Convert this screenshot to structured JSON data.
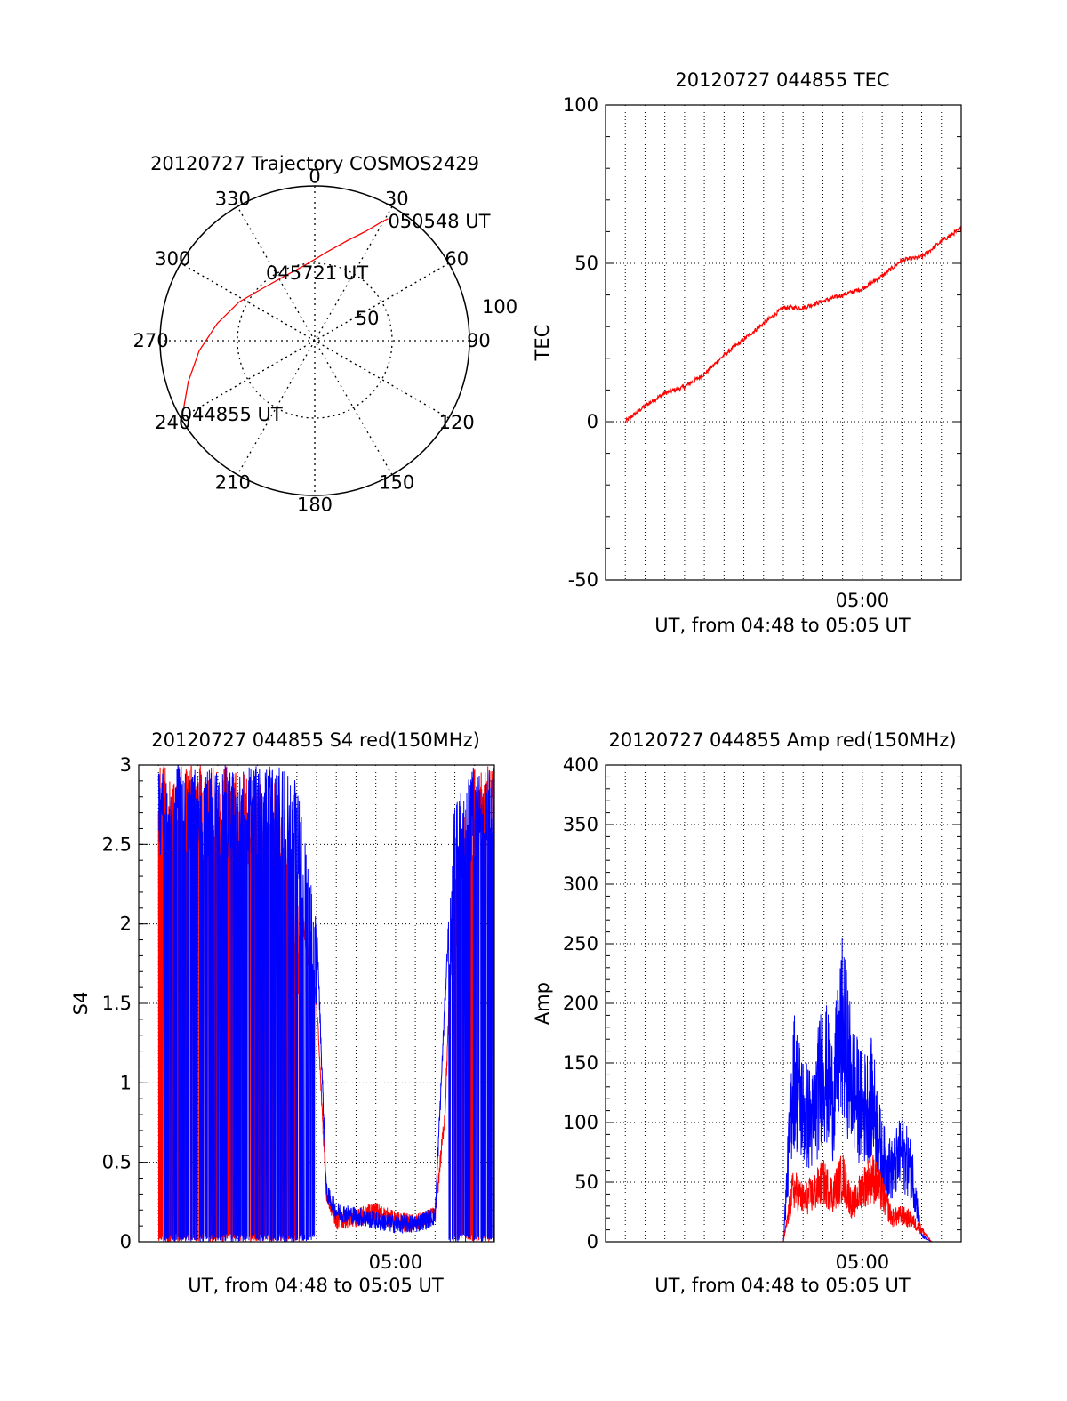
{
  "colors": {
    "red": "#ff0000",
    "blue": "#0000ff",
    "axis": "#000000"
  },
  "chart_data": [
    {
      "id": "trajectory",
      "type": "polar",
      "title": "20120727 Trajectory COSMOS2429",
      "radial_ticks": [
        "50",
        "100"
      ],
      "radial_range": [
        0,
        100
      ],
      "azimuth_labels": [
        "0",
        "30",
        "60",
        "90",
        "120",
        "150",
        "180",
        "210",
        "240",
        "270",
        "300",
        "330"
      ],
      "track": [
        {
          "az": 243,
          "r": 95
        },
        {
          "az": 252,
          "r": 86
        },
        {
          "az": 265,
          "r": 75
        },
        {
          "az": 280,
          "r": 64
        },
        {
          "az": 297,
          "r": 55
        },
        {
          "az": 314,
          "r": 48
        },
        {
          "az": 333,
          "r": 46
        },
        {
          "az": 352,
          "r": 49
        },
        {
          "az": 8,
          "r": 58
        },
        {
          "az": 18,
          "r": 68
        },
        {
          "az": 25,
          "r": 78
        },
        {
          "az": 29,
          "r": 87
        },
        {
          "az": 31,
          "r": 92
        }
      ],
      "time_labels": [
        {
          "text": "044855 UT",
          "az": 243,
          "r": 95
        },
        {
          "text": "045721 UT",
          "az": 20,
          "r": 50
        },
        {
          "text": "050548 UT",
          "az": 31,
          "r": 92
        }
      ]
    },
    {
      "id": "tec",
      "type": "line",
      "title": "20120727 044855 TEC",
      "xlabel": "UT, from 04:48 to 05:05 UT",
      "ylabel": "TEC",
      "xlim": [
        "04:47",
        "05:05"
      ],
      "ylim": [
        -50,
        100
      ],
      "yticks": [
        "-50",
        "0",
        "50",
        "100"
      ],
      "xtick_labels": [
        {
          "label": "05:00",
          "at": "05:00"
        }
      ],
      "grid": true,
      "series": [
        {
          "color": "red",
          "x": [
            "04:48",
            "04:49",
            "04:50",
            "04:51",
            "04:52",
            "04:53",
            "04:54",
            "04:55",
            "04:56",
            "04:57",
            "04:58",
            "04:59",
            "05:00",
            "05:01",
            "05:02",
            "05:03",
            "05:04",
            "05:05"
          ],
          "y": [
            0,
            5,
            9,
            11,
            15,
            21,
            26,
            31,
            36,
            36,
            38,
            40,
            42,
            46,
            51,
            52,
            57,
            61
          ]
        }
      ]
    },
    {
      "id": "s4",
      "type": "line",
      "title": "20120727 044855 S4 red(150MHz)",
      "xlabel": "UT, from 04:48 to 05:05 UT",
      "ylabel": "S4",
      "xlim": [
        "04:47",
        "05:05"
      ],
      "ylim": [
        0,
        3
      ],
      "yticks": [
        "0",
        "0.5",
        "1",
        "1.5",
        "2",
        "2.5",
        "3"
      ],
      "xtick_labels": [
        {
          "label": "05:00",
          "at": "05:00"
        }
      ],
      "grid": true,
      "series": [
        {
          "color": "red",
          "x": [
            "04:48",
            "04:52",
            "04:54",
            "04:56",
            "04:56.5",
            "04:57",
            "04:58",
            "04:59",
            "05:00",
            "05:01",
            "05:02",
            "05:02.5",
            "05:03",
            "05:04",
            "05:05"
          ],
          "y": [
            3,
            3,
            2.9,
            1.5,
            0.3,
            0.12,
            0.14,
            0.18,
            0.12,
            0.1,
            0.15,
            0.8,
            2.4,
            3,
            3
          ]
        },
        {
          "color": "blue",
          "x": [
            "04:48",
            "04:52",
            "04:54",
            "04:55",
            "04:56",
            "04:56.5",
            "04:57",
            "04:58",
            "04:59",
            "05:00",
            "05:01",
            "05:02",
            "05:02.5",
            "05:03",
            "05:04",
            "05:05"
          ],
          "y": [
            3,
            3,
            3,
            2.9,
            2.0,
            0.3,
            0.18,
            0.15,
            0.12,
            0.1,
            0.1,
            0.15,
            1.5,
            2.8,
            3,
            3
          ]
        }
      ]
    },
    {
      "id": "amp",
      "type": "line",
      "title": "20120727 044855 Amp red(150MHz)",
      "xlabel": "UT, from 04:48 to 05:05 UT",
      "ylabel": "Amp",
      "xlim": [
        "04:47",
        "05:05"
      ],
      "ylim": [
        0,
        400
      ],
      "yticks": [
        "0",
        "50",
        "100",
        "150",
        "200",
        "250",
        "300",
        "350",
        "400"
      ],
      "xtick_labels": [
        {
          "label": "05:00",
          "at": "05:00"
        }
      ],
      "grid": true,
      "series": [
        {
          "color": "blue",
          "x": [
            "04:48",
            "04:55",
            "04:56",
            "04:56.5",
            "04:57",
            "04:57.5",
            "04:58",
            "04:58.5",
            "04:59",
            "04:59.5",
            "05:00",
            "05:00.5",
            "05:01",
            "05:01.5",
            "05:02",
            "05:02.5",
            "05:03",
            "05:03.5",
            "05:05"
          ],
          "y": [
            0,
            0,
            0,
            140,
            110,
            100,
            150,
            120,
            180,
            130,
            110,
            120,
            70,
            60,
            75,
            60,
            5,
            0,
            0
          ]
        },
        {
          "color": "red",
          "x": [
            "04:48",
            "04:55",
            "04:56",
            "04:56.5",
            "04:57",
            "04:57.5",
            "04:58",
            "04:58.5",
            "04:59",
            "04:59.5",
            "05:00",
            "05:00.5",
            "05:01",
            "05:01.5",
            "05:02",
            "05:02.5",
            "05:03",
            "05:03.5",
            "05:05"
          ],
          "y": [
            0,
            0,
            0,
            45,
            35,
            40,
            50,
            40,
            55,
            30,
            45,
            55,
            40,
            20,
            22,
            18,
            10,
            0,
            0
          ]
        }
      ]
    }
  ]
}
